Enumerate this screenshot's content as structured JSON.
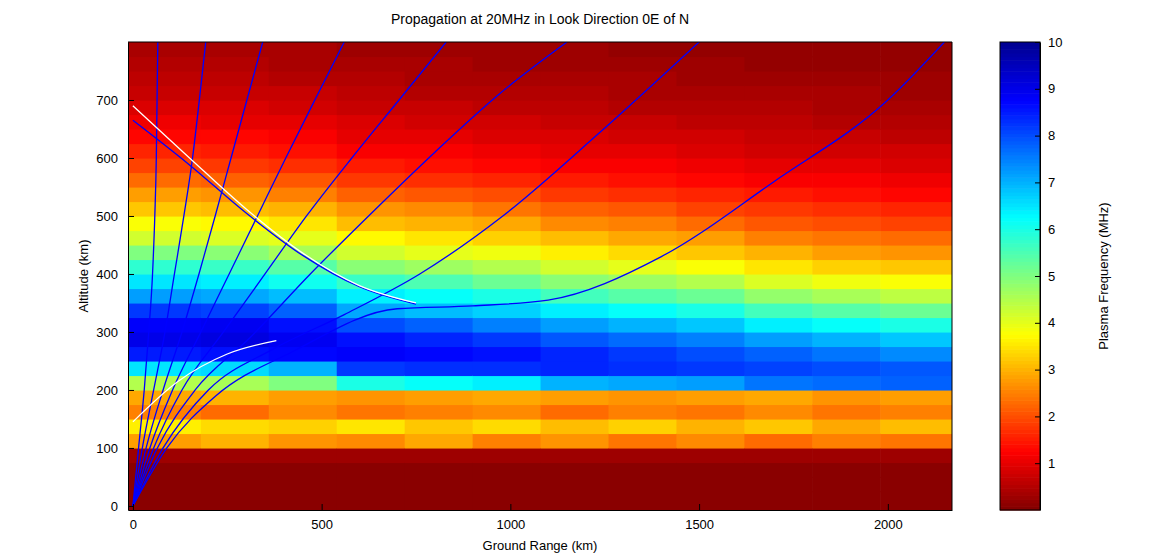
{
  "chart_data": {
    "type": "heatmap",
    "title": "Propagation at 20MHz in Look Direction 0E of N",
    "x_label": "Ground Range (km)",
    "y_label": "Altitude (km)",
    "xlim": [
      -13,
      2170
    ],
    "ylim": [
      -7,
      800
    ],
    "xticks": [
      0,
      500,
      1000,
      1500,
      2000
    ],
    "yticks": [
      0,
      100,
      200,
      300,
      400,
      500,
      600,
      700
    ],
    "x_edges": [
      -13,
      180,
      360,
      540,
      720,
      900,
      1080,
      1260,
      1440,
      1620,
      1800,
      1980,
      2170
    ],
    "y_edges": [
      -7,
      25,
      50,
      75,
      100,
      125,
      150,
      175,
      200,
      225,
      250,
      275,
      300,
      325,
      350,
      375,
      400,
      425,
      450,
      475,
      500,
      525,
      550,
      575,
      600,
      625,
      650,
      675,
      700,
      725,
      750,
      775,
      800
    ],
    "cells": [
      [
        0.1,
        0.1,
        0.1,
        0.3,
        2.8,
        3.6,
        2.5,
        2.9,
        4.5,
        6.5,
        8.5,
        9.0,
        8.8,
        8.2,
        7.2,
        6.5,
        5.8,
        5.0,
        4.2,
        3.8,
        3.2,
        2.8,
        2.3,
        1.9,
        1.6,
        1.3,
        1.1,
        0.9,
        0.7,
        0.6,
        0.5,
        0.4
      ],
      [
        0.1,
        0.1,
        0.1,
        0.3,
        3.0,
        3.4,
        2.3,
        3.0,
        4.6,
        6.6,
        8.6,
        9.1,
        8.9,
        8.1,
        7.1,
        6.4,
        5.7,
        4.9,
        4.1,
        3.7,
        3.1,
        2.7,
        2.2,
        1.8,
        1.5,
        1.3,
        1.0,
        0.9,
        0.7,
        0.6,
        0.5,
        0.4
      ],
      [
        0.1,
        0.1,
        0.1,
        0.3,
        2.7,
        3.3,
        2.6,
        2.8,
        5.0,
        7.0,
        8.7,
        8.9,
        8.6,
        7.8,
        6.9,
        6.1,
        5.4,
        4.6,
        4.0,
        3.5,
        3.0,
        2.5,
        2.1,
        1.7,
        1.4,
        1.2,
        1.0,
        0.8,
        0.7,
        0.5,
        0.4,
        0.4
      ],
      [
        0.1,
        0.1,
        0.1,
        0.3,
        2.6,
        3.5,
        2.4,
        2.7,
        6.0,
        8.2,
        8.8,
        8.6,
        8.0,
        7.1,
        6.4,
        5.7,
        4.9,
        4.2,
        3.7,
        3.1,
        2.7,
        2.2,
        1.8,
        1.5,
        1.2,
        1.0,
        0.9,
        0.7,
        0.6,
        0.5,
        0.4,
        0.3
      ],
      [
        0.1,
        0.1,
        0.1,
        0.3,
        2.9,
        3.2,
        2.5,
        2.8,
        6.2,
        8.3,
        8.7,
        8.4,
        7.8,
        6.9,
        6.2,
        5.5,
        4.7,
        4.0,
        3.5,
        3.0,
        2.6,
        2.1,
        1.7,
        1.4,
        1.2,
        1.0,
        0.8,
        0.7,
        0.5,
        0.4,
        0.4,
        0.3
      ],
      [
        0.1,
        0.1,
        0.1,
        0.3,
        2.5,
        3.4,
        2.6,
        2.9,
        6.4,
        8.3,
        8.6,
        8.2,
        7.5,
        6.7,
        6.0,
        5.2,
        4.5,
        3.9,
        3.3,
        2.9,
        2.4,
        2.0,
        1.6,
        1.3,
        1.1,
        0.9,
        0.8,
        0.6,
        0.5,
        0.4,
        0.3,
        0.3
      ],
      [
        0.1,
        0.1,
        0.1,
        0.3,
        2.7,
        3.1,
        2.3,
        2.8,
        7.0,
        8.4,
        8.4,
        7.9,
        7.2,
        6.4,
        5.6,
        4.9,
        4.2,
        3.6,
        3.1,
        2.6,
        2.2,
        1.8,
        1.5,
        1.2,
        1.0,
        0.9,
        0.7,
        0.6,
        0.5,
        0.4,
        0.3,
        0.3
      ],
      [
        0.1,
        0.1,
        0.1,
        0.3,
        2.4,
        3.3,
        2.5,
        2.7,
        7.1,
        8.3,
        8.2,
        7.7,
        7.0,
        6.2,
        5.4,
        4.7,
        4.0,
        3.4,
        2.9,
        2.5,
        2.1,
        1.7,
        1.4,
        1.2,
        1.0,
        0.8,
        0.7,
        0.5,
        0.4,
        0.4,
        0.3,
        0.2
      ],
      [
        0.1,
        0.1,
        0.1,
        0.3,
        2.6,
        3.0,
        2.4,
        2.8,
        7.2,
        8.2,
        8.0,
        7.5,
        6.8,
        6.0,
        5.2,
        4.5,
        3.8,
        3.2,
        2.8,
        2.3,
        1.9,
        1.6,
        1.3,
        1.1,
        0.9,
        0.8,
        0.6,
        0.5,
        0.4,
        0.3,
        0.3,
        0.2
      ],
      [
        0.1,
        0.1,
        0.1,
        0.3,
        2.3,
        3.2,
        2.6,
        2.9,
        7.6,
        8.1,
        7.8,
        7.2,
        6.4,
        5.6,
        4.8,
        4.1,
        3.5,
        3.0,
        2.5,
        2.1,
        1.8,
        1.5,
        1.2,
        1.0,
        0.8,
        0.7,
        0.6,
        0.5,
        0.4,
        0.3,
        0.2,
        0.2
      ],
      [
        0.1,
        0.1,
        0.1,
        0.3,
        2.5,
        2.9,
        2.4,
        2.7,
        7.7,
        8.0,
        7.6,
        7.0,
        6.2,
        5.4,
        4.6,
        3.9,
        3.3,
        2.8,
        2.4,
        2.0,
        1.7,
        1.4,
        1.2,
        1.0,
        0.8,
        0.7,
        0.5,
        0.4,
        0.4,
        0.3,
        0.2,
        0.2
      ],
      [
        0.1,
        0.1,
        0.1,
        0.3,
        2.4,
        3.1,
        2.5,
        2.8,
        7.8,
        7.9,
        7.4,
        6.8,
        6.0,
        5.2,
        4.4,
        3.8,
        3.2,
        2.7,
        2.3,
        1.9,
        1.6,
        1.3,
        1.1,
        0.9,
        0.8,
        0.6,
        0.5,
        0.4,
        0.3,
        0.3,
        0.2,
        0.2
      ]
    ],
    "colorbar": {
      "label": "Plasma Frequency (MHz)",
      "lim": [
        0,
        10
      ],
      "ticks": [
        1,
        2,
        3,
        4,
        5,
        6,
        7,
        8,
        9,
        10
      ]
    },
    "series": [
      {
        "color": "blue",
        "x": [
          0,
          15,
          30,
          42,
          52,
          58,
          62,
          64,
          66
        ],
        "y": [
          0,
          100,
          200,
          300,
          400,
          500,
          600,
          700,
          800
        ]
      },
      {
        "color": "blue",
        "x": [
          0,
          25,
          55,
          85,
          110,
          135,
          158,
          176,
          193
        ],
        "y": [
          0,
          100,
          200,
          300,
          400,
          500,
          600,
          700,
          800
        ]
      },
      {
        "color": "blue",
        "x": [
          0,
          35,
          80,
          130,
          175,
          218,
          260,
          302,
          344
        ],
        "y": [
          0,
          100,
          200,
          300,
          400,
          500,
          600,
          700,
          800
        ]
      },
      {
        "color": "blue",
        "x": [
          0,
          45,
          105,
          180,
          255,
          330,
          405,
          482,
          560
        ],
        "y": [
          0,
          100,
          200,
          300,
          400,
          500,
          600,
          700,
          800
        ]
      },
      {
        "color": "blue",
        "x": [
          0,
          55,
          130,
          240,
          350,
          460,
          580,
          705,
          830
        ],
        "y": [
          0,
          100,
          200,
          300,
          400,
          500,
          600,
          700,
          800
        ]
      },
      {
        "color": "blue",
        "x": [
          0,
          65,
          165,
          310,
          470,
          640,
          800,
          970,
          1150
        ],
        "y": [
          0,
          100,
          200,
          290,
          400,
          510,
          610,
          710,
          800
        ]
      },
      {
        "color": "blue",
        "x": [
          0,
          80,
          200,
          370,
          560,
          760,
          980,
          1230,
          1500
        ],
        "y": [
          0,
          100,
          200,
          270,
          330,
          400,
          500,
          640,
          800
        ]
      },
      {
        "color": "blue",
        "x": [
          0,
          90,
          220,
          420,
          700,
          900,
          1100,
          1400,
          1700,
          2000,
          2150
        ],
        "y": [
          0,
          100,
          190,
          265,
          340,
          345,
          355,
          430,
          560,
          700,
          800
        ]
      },
      {
        "color": "blue",
        "x": [
          0,
          150,
          300,
          450,
          600,
          750
        ],
        "y": [
          665,
          588,
          505,
          432,
          378,
          348
        ]
      },
      {
        "color": "white",
        "x": [
          0,
          150,
          300,
          450,
          600,
          750
        ],
        "y": [
          690,
          600,
          512,
          436,
          380,
          350
        ]
      },
      {
        "color": "white",
        "x": [
          0,
          120,
          250,
          380
        ],
        "y": [
          145,
          215,
          262,
          285
        ]
      }
    ]
  }
}
